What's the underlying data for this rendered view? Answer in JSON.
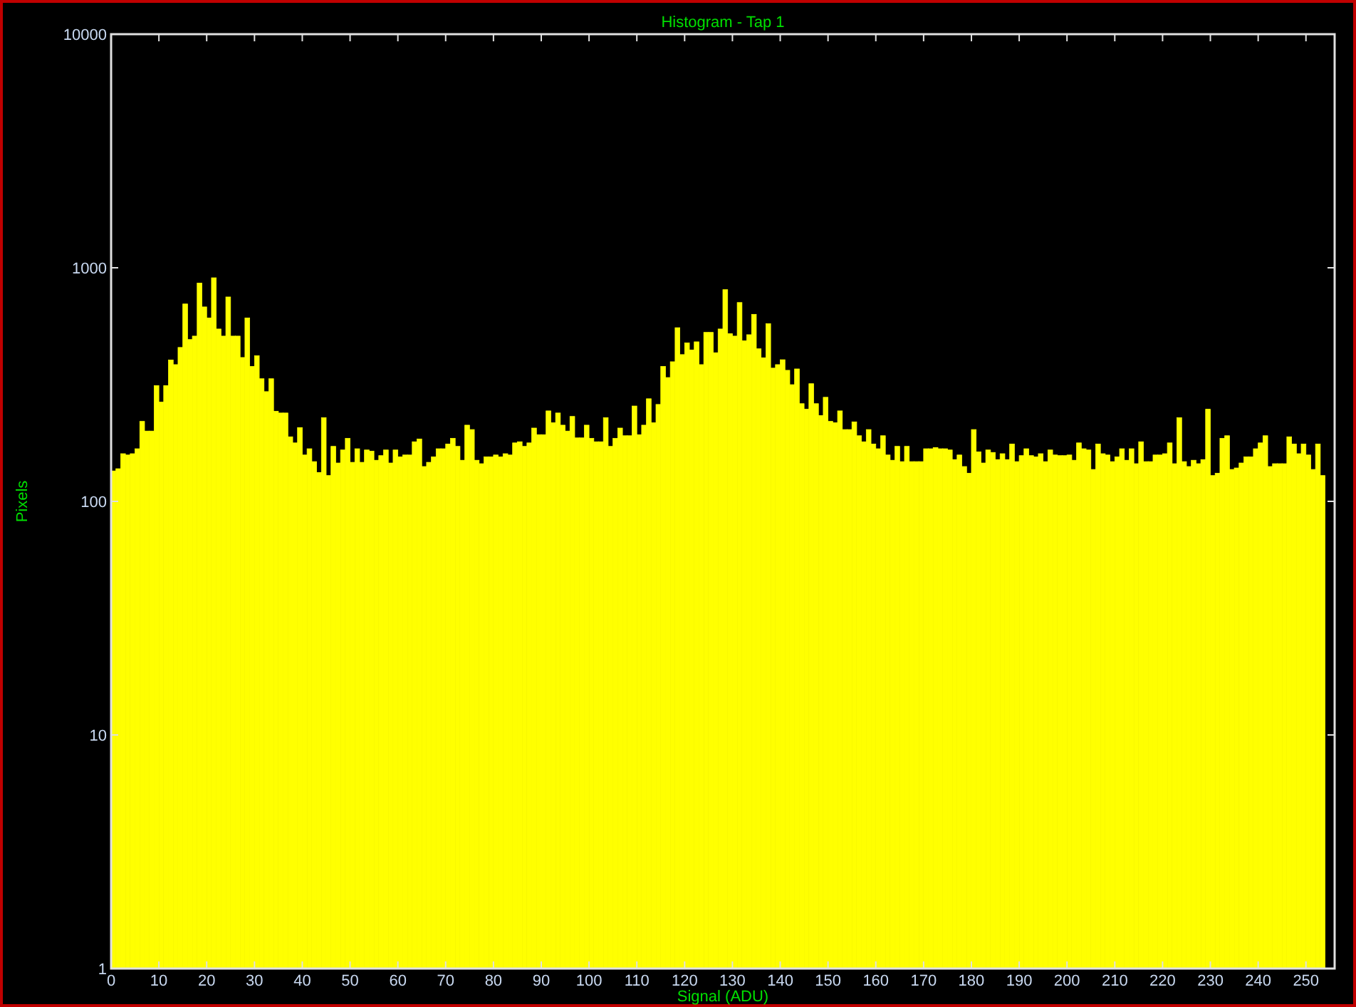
{
  "chart_data": {
    "type": "histogram",
    "title": "Histogram - Tap 1",
    "xlabel": "Signal (ADU)",
    "ylabel": "Pixels",
    "color": "#ffff00",
    "log": "y",
    "grid": false,
    "bins": [
      0,
      1,
      2,
      3,
      4,
      5,
      6,
      7,
      8,
      9,
      10,
      11,
      12,
      13,
      14,
      15,
      16,
      17,
      18,
      19,
      20,
      21,
      22,
      23,
      24,
      25,
      26,
      27,
      28,
      29,
      30,
      31,
      32,
      33,
      34,
      35,
      36,
      37,
      38,
      39,
      40,
      41,
      42,
      43,
      44,
      45,
      46,
      47,
      48,
      49,
      50,
      51,
      52,
      53,
      54,
      55,
      56,
      57,
      58,
      59,
      60,
      61,
      62,
      63,
      64,
      65,
      66,
      67,
      68,
      69,
      70,
      71,
      72,
      73,
      74,
      75,
      76,
      77,
      78,
      79,
      80,
      81,
      82,
      83,
      84,
      85,
      86,
      87,
      88,
      89,
      90,
      91,
      92,
      93,
      94,
      95,
      96,
      97,
      98,
      99,
      100,
      101,
      102,
      103,
      104,
      105,
      106,
      107,
      108,
      109,
      110,
      111,
      112,
      113,
      114,
      115,
      116,
      117,
      118,
      119,
      120,
      121,
      122,
      123,
      124,
      125,
      126,
      127,
      128,
      129,
      130,
      131,
      132,
      133,
      134,
      135,
      136,
      137,
      138,
      139,
      140,
      141,
      142,
      143,
      144,
      145,
      146,
      147,
      148,
      149,
      150,
      151,
      152,
      153,
      154,
      155,
      156,
      157,
      158,
      159,
      160,
      161,
      162,
      163,
      164,
      165,
      166,
      167,
      168,
      169,
      170,
      171,
      172,
      173,
      174,
      175,
      176,
      177,
      178,
      179,
      180,
      181,
      182,
      183,
      184,
      185,
      186,
      187,
      188,
      189,
      190,
      191,
      192,
      193,
      194,
      195,
      196,
      197,
      198,
      199,
      200,
      201,
      202,
      203,
      204,
      205,
      206,
      207,
      208,
      209,
      210,
      211,
      212,
      213,
      214,
      215,
      216,
      217,
      218,
      219,
      220,
      221,
      222,
      223,
      224,
      225,
      226,
      227,
      228,
      229,
      230,
      231,
      232,
      233,
      234,
      235,
      236,
      237,
      238,
      239,
      240,
      241,
      242,
      243,
      244,
      245,
      246,
      247,
      248,
      249,
      250,
      251,
      252,
      253,
      254
    ],
    "values": [
      135,
      138,
      160,
      158,
      160,
      168,
      220,
      200,
      200,
      313,
      266,
      313,
      403,
      385,
      456,
      700,
      493,
      510,
      860,
      680,
      610,
      906,
      547,
      510,
      750,
      510,
      510,
      413,
      610,
      378,
      420,
      335,
      295,
      335,
      243,
      239,
      239,
      189,
      178,
      207,
      158,
      168,
      148,
      133,
      228,
      129,
      172,
      146,
      166,
      186,
      147,
      168,
      147,
      166,
      164,
      150,
      157,
      166,
      146,
      166,
      155,
      158,
      158,
      180,
      185,
      141,
      147,
      155,
      168,
      168,
      176,
      186,
      172,
      150,
      212,
      203,
      150,
      145,
      155,
      155,
      158,
      155,
      160,
      158,
      178,
      180,
      172,
      178,
      206,
      193,
      193,
      244,
      217,
      239,
      212,
      200,
      231,
      187,
      187,
      212,
      186,
      180,
      180,
      228,
      172,
      186,
      206,
      191,
      191,
      256,
      193,
      212,
      275,
      217,
      260,
      378,
      339,
      396,
      554,
      425,
      477,
      445,
      482,
      385,
      529,
      529,
      433,
      547,
      806,
      522,
      510,
      710,
      487,
      517,
      632,
      450,
      412,
      576,
      372,
      385,
      404,
      364,
      316,
      369,
      262,
      248,
      319,
      262,
      233,
      279,
      220,
      217,
      244,
      203,
      203,
      219,
      191,
      180,
      203,
      176,
      168,
      191,
      158,
      150,
      172,
      148,
      172,
      148,
      148,
      148,
      168,
      168,
      170,
      168,
      168,
      166,
      151,
      158,
      141,
      132,
      203,
      163,
      146,
      166,
      162,
      151,
      160,
      151,
      176,
      148,
      157,
      168,
      157,
      155,
      160,
      148,
      166,
      158,
      157,
      157,
      158,
      150,
      178,
      168,
      166,
      137,
      176,
      160,
      158,
      148,
      155,
      168,
      150,
      168,
      145,
      180,
      148,
      148,
      158,
      158,
      160,
      178,
      145,
      228,
      148,
      141,
      150,
      145,
      151,
      248,
      129,
      132,
      186,
      191,
      137,
      139,
      146,
      155,
      155,
      168,
      178,
      191,
      141,
      145,
      145,
      145,
      189,
      176,
      160,
      176,
      158,
      137,
      176,
      129
    ],
    "xlim": [
      0,
      256
    ],
    "xticks": [
      0,
      10,
      20,
      30,
      40,
      50,
      60,
      70,
      80,
      90,
      100,
      110,
      120,
      130,
      140,
      150,
      160,
      170,
      180,
      190,
      200,
      210,
      220,
      230,
      240,
      250
    ],
    "ylim": [
      1,
      10000
    ],
    "yticks": [
      1,
      10,
      100,
      1000,
      10000
    ]
  }
}
